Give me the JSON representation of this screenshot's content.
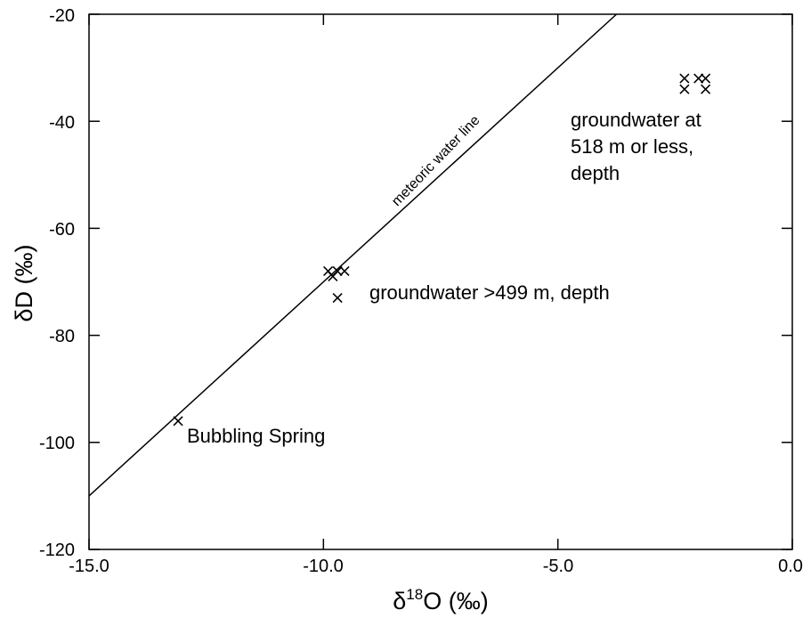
{
  "chart_data": {
    "type": "scatter",
    "xlabel_prefix": "δ",
    "xlabel_sup": "18",
    "xlabel_suffix": "O (‰)",
    "ylabel": "δD (‰)",
    "xlim": [
      -15.0,
      0.0
    ],
    "ylim": [
      -120,
      -20
    ],
    "x_ticks": [
      -15.0,
      -10.0,
      -5.0,
      0.0
    ],
    "x_tick_labels": [
      "-15.0",
      "-10.0",
      "-5.0",
      "0.0"
    ],
    "y_ticks": [
      -120,
      -100,
      -80,
      -60,
      -40,
      -20
    ],
    "y_tick_labels": [
      "-120",
      "-100",
      "-80",
      "-60",
      "-40",
      "-20"
    ],
    "grid": false,
    "legend": "none",
    "points": [
      {
        "x": -13.1,
        "y": -96
      },
      {
        "x": -9.9,
        "y": -68
      },
      {
        "x": -9.8,
        "y": -69
      },
      {
        "x": -9.7,
        "y": -68
      },
      {
        "x": -9.55,
        "y": -68
      },
      {
        "x": -9.7,
        "y": -73
      },
      {
        "x": -2.3,
        "y": -32
      },
      {
        "x": -2.3,
        "y": -34
      },
      {
        "x": -2.0,
        "y": -32
      },
      {
        "x": -1.85,
        "y": -32
      },
      {
        "x": -1.85,
        "y": -34
      }
    ],
    "reference_line": {
      "label": "meteoric water line",
      "x": [
        -15.0,
        -3.75
      ],
      "y": [
        -110,
        -20
      ]
    },
    "annotations": {
      "bubbling_spring": "Bubbling Spring",
      "deep_groundwater": "groundwater >499 m, depth",
      "shallow_line1": "groundwater at",
      "shallow_line2": "518 m or less,",
      "shallow_line3": "depth"
    }
  }
}
